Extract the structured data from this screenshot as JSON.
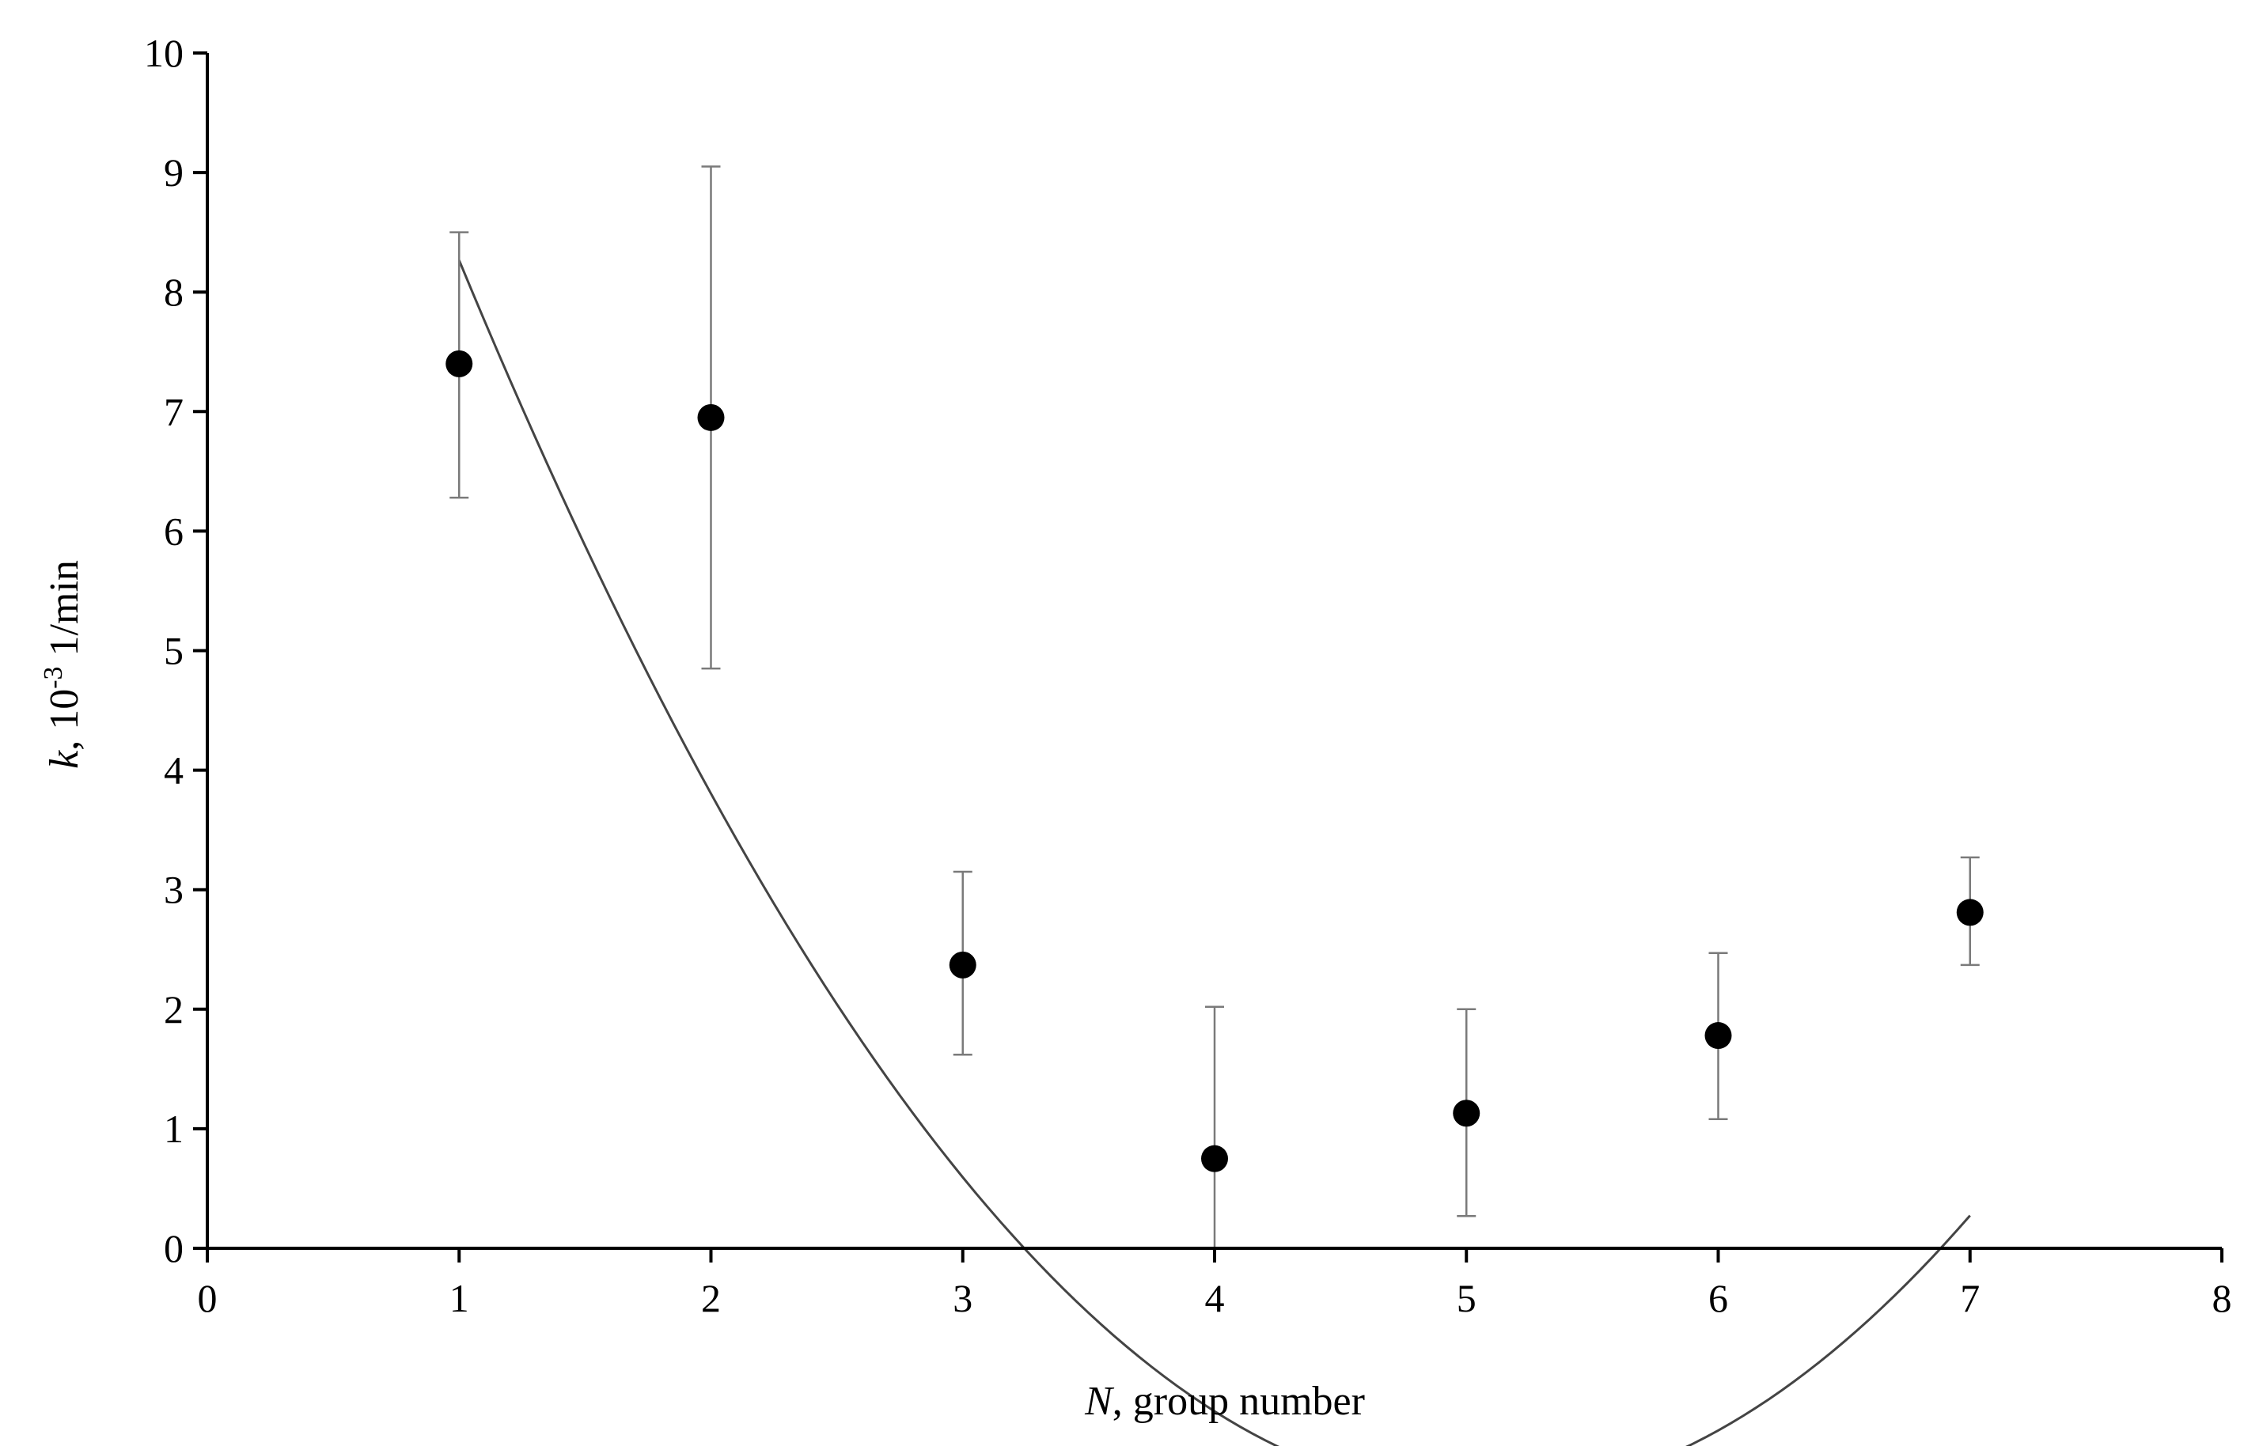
{
  "chart_data": {
    "type": "scatter",
    "title": "",
    "xlabel": {
      "var": "N",
      "rest": ", group number"
    },
    "ylabel": {
      "var": "k",
      "rest_before": ", 10",
      "sup": "-3",
      "rest_after": " 1/min"
    },
    "xlim": [
      0,
      8
    ],
    "ylim": [
      0,
      10
    ],
    "x_ticks": [
      0,
      1,
      2,
      3,
      4,
      5,
      6,
      7,
      8
    ],
    "y_ticks": [
      0,
      1,
      2,
      3,
      4,
      5,
      6,
      7,
      8,
      9,
      10
    ],
    "grid": false,
    "legend": "none",
    "points": [
      {
        "x": 1,
        "y": 7.4,
        "err_low": 6.28,
        "err_high": 8.5
      },
      {
        "x": 2,
        "y": 6.95,
        "err_low": 4.85,
        "err_high": 9.05
      },
      {
        "x": 3,
        "y": 2.37,
        "err_low": 1.62,
        "err_high": 3.15
      },
      {
        "x": 4,
        "y": 0.75,
        "err_low": 0.0,
        "err_high": 2.02
      },
      {
        "x": 5,
        "y": 1.13,
        "err_low": 0.27,
        "err_high": 2.0
      },
      {
        "x": 6,
        "y": 1.78,
        "err_low": 1.08,
        "err_high": 2.47
      },
      {
        "x": 7,
        "y": 2.81,
        "err_low": 2.37,
        "err_high": 3.27
      }
    ],
    "trend": {
      "type": "polynomial",
      "coefficients": [
        13.98,
        -6.34,
        0.626
      ],
      "x_range": [
        1,
        7
      ]
    },
    "colors": {
      "marker": "#000000",
      "axis": "#000000",
      "trend": "#444444",
      "errorbar": "#7a7a7a"
    }
  }
}
